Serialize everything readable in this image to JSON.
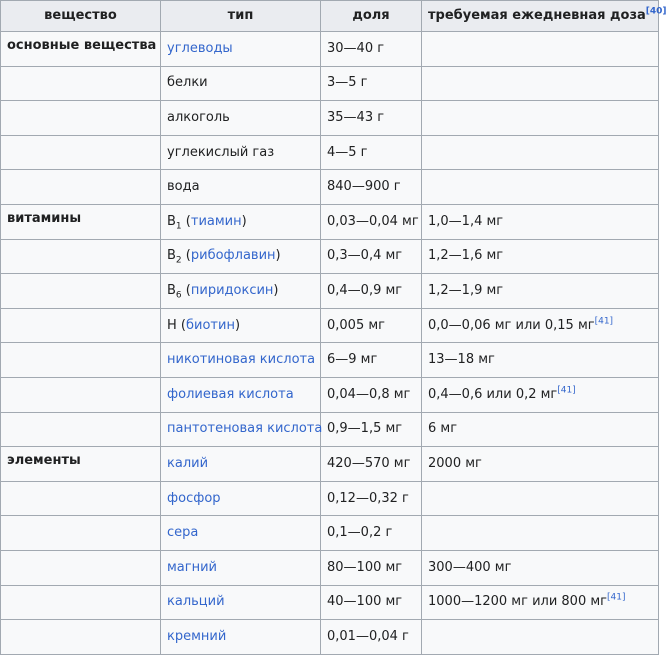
{
  "headers": {
    "substance": "вещество",
    "type": "тип",
    "share": "доля",
    "daily": "требуемая ежедневная доза",
    "daily_ref": "[40]"
  },
  "rows": [
    {
      "group": "основные вещества",
      "type": "углеводы",
      "type_link": true,
      "share": "30—40 г",
      "daily": ""
    },
    {
      "group": "",
      "type": "белки",
      "type_link": false,
      "share": "3—5 г",
      "daily": ""
    },
    {
      "group": "",
      "type": "алкоголь",
      "type_link": false,
      "share": "35—43 г",
      "daily": ""
    },
    {
      "group": "",
      "type": "углекислый газ",
      "type_link": false,
      "share": "4—5 г",
      "daily": ""
    },
    {
      "group": "",
      "type": "вода",
      "type_link": false,
      "share": "840—900 г",
      "daily": ""
    },
    {
      "group": "витамины",
      "type_prefix": "B",
      "type_sub": "1",
      "type_paren_open": " (",
      "type": "тиамин",
      "type_paren_close": ")",
      "share": "0,03—0,04 мг",
      "daily": "1,0—1,4 мг"
    },
    {
      "group": "",
      "type_prefix": "B",
      "type_sub": "2",
      "type_paren_open": " (",
      "type": "рибофлавин",
      "type_paren_close": ")",
      "share": "0,3—0,4 мг",
      "daily": "1,2—1,6 мг"
    },
    {
      "group": "",
      "type_prefix": "B",
      "type_sub": "6",
      "type_paren_open": " (",
      "type": "пиридоксин",
      "type_paren_close": ")",
      "share": "0,4—0,9 мг",
      "daily": "1,2—1,9 мг"
    },
    {
      "group": "",
      "type_prefix": "H",
      "type_sub": "",
      "type_paren_open": " (",
      "type": "биотин",
      "type_paren_close": ")",
      "share": "0,005 мг",
      "daily": "0,0—0,06 мг или 0,15 мг",
      "daily_ref": "[41]"
    },
    {
      "group": "",
      "type": "никотиновая кислота",
      "type_link": true,
      "share": "6—9 мг",
      "daily": "13—18 мг"
    },
    {
      "group": "",
      "type": "фолиевая кислота",
      "type_link": true,
      "share": "0,04—0,8 мг",
      "daily": "0,4—0,6 или 0,2 мг",
      "daily_ref": "[41]"
    },
    {
      "group": "",
      "type": "пантотеновая кислота",
      "type_link": true,
      "share": "0,9—1,5 мг",
      "daily": "6 мг"
    },
    {
      "group": "элементы",
      "type": "калий",
      "type_link": true,
      "share": "420—570 мг",
      "daily": "2000 мг"
    },
    {
      "group": "",
      "type": "фосфор",
      "type_link": true,
      "share": "0,12—0,32 г",
      "daily": ""
    },
    {
      "group": "",
      "type": "сера",
      "type_link": true,
      "share": "0,1—0,2 г",
      "daily": ""
    },
    {
      "group": "",
      "type": "магний",
      "type_link": true,
      "share": "80—100 мг",
      "daily": "300—400 мг"
    },
    {
      "group": "",
      "type": "кальций",
      "type_link": true,
      "share": "40—100 мг",
      "daily": "1000—1200 мг или 800 мг",
      "daily_ref": "[41]"
    },
    {
      "group": "",
      "type": "кремний",
      "type_link": true,
      "share": "0,01—0,04 г",
      "daily": ""
    }
  ]
}
